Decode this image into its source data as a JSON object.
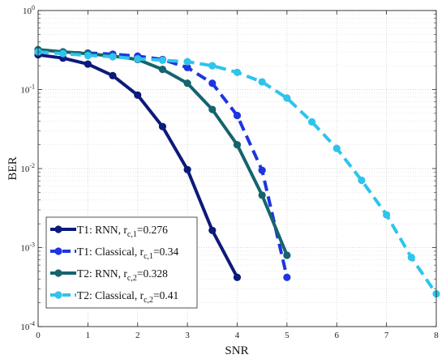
{
  "chart_data": {
    "type": "line",
    "xlabel": "SNR",
    "ylabel": "BER",
    "xlim": [
      0,
      8
    ],
    "ylim": [
      0.0001,
      1
    ],
    "y_scale": "log",
    "x_ticks": [
      "0",
      "1",
      "2",
      "3",
      "4",
      "5",
      "6",
      "7",
      "8"
    ],
    "y_ticks": [
      {
        "base": "10",
        "exp": "0"
      },
      {
        "base": "10",
        "exp": "-1"
      },
      {
        "base": "10",
        "exp": "-2"
      },
      {
        "base": "10",
        "exp": "-3"
      },
      {
        "base": "10",
        "exp": "-4"
      }
    ],
    "grid": true,
    "legend_position": "bottom-left",
    "series": [
      {
        "name": "T1: RNN, r",
        "name_sub": "c,1",
        "name_suffix": "=0.276",
        "color": "#0c1a7a",
        "dashed": false,
        "x": [
          0,
          0.5,
          1,
          1.5,
          2,
          2.5,
          3,
          3.5,
          4
        ],
        "y": [
          0.275,
          0.25,
          0.21,
          0.15,
          0.085,
          0.034,
          0.0097,
          0.00165,
          0.00042
        ]
      },
      {
        "name": "T1: Classical, r",
        "name_sub": "c,1",
        "name_suffix": "=0.34",
        "color": "#1f35e0",
        "dashed": true,
        "x": [
          0,
          0.5,
          1,
          1.5,
          2,
          2.5,
          3,
          3.5,
          4,
          4.5,
          5
        ],
        "y": [
          0.3,
          0.295,
          0.29,
          0.28,
          0.265,
          0.24,
          0.19,
          0.12,
          0.047,
          0.0095,
          0.00042
        ]
      },
      {
        "name": "T2: RNN, r",
        "name_sub": "c,2",
        "name_suffix": "=0.328",
        "color": "#15646e",
        "dashed": false,
        "x": [
          0,
          0.5,
          1,
          1.5,
          2,
          2.5,
          3,
          3.5,
          4,
          4.5,
          5
        ],
        "y": [
          0.32,
          0.3,
          0.285,
          0.265,
          0.24,
          0.18,
          0.12,
          0.056,
          0.02,
          0.0046,
          0.0008
        ]
      },
      {
        "name": "T2: Classical, r",
        "name_sub": "c,2",
        "name_suffix": "=0.41",
        "color": "#2ec4ec",
        "dashed": true,
        "x": [
          0,
          0.5,
          1,
          1.5,
          2,
          2.5,
          3,
          3.5,
          4,
          4.5,
          5,
          5.5,
          6,
          6.5,
          7,
          7.5,
          8
        ],
        "y": [
          0.3,
          0.285,
          0.27,
          0.26,
          0.245,
          0.235,
          0.225,
          0.2,
          0.165,
          0.125,
          0.078,
          0.039,
          0.018,
          0.0071,
          0.0026,
          0.00075,
          0.00026
        ]
      }
    ]
  }
}
